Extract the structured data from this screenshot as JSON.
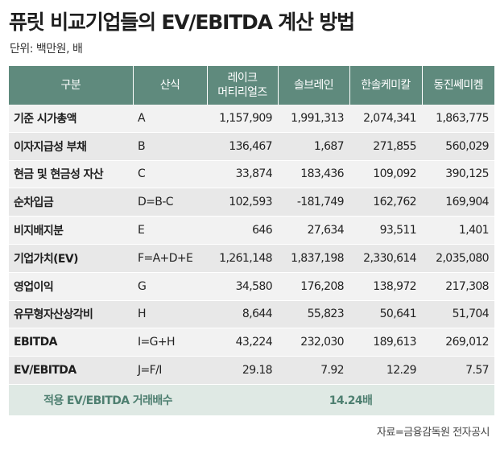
{
  "title": "퓨릿 비교기업들의 EV/EBITDA 계산 방법",
  "unit": "단위: 백만원, 배",
  "headers": [
    "구분",
    "산식",
    "레이크\n머티리얼즈",
    "솔브레인",
    "한솔케미칼",
    "동진쎄미켐"
  ],
  "rows": [
    {
      "label": "기준 시가총액",
      "formula": "A",
      "values": [
        "1,157,909",
        "1,991,313",
        "2,074,341",
        "1,863,775"
      ]
    },
    {
      "label": "이자지급성 부채",
      "formula": "B",
      "values": [
        "136,467",
        "1,687",
        "271,855",
        "560,029"
      ]
    },
    {
      "label": "현금 및 현금성 자산",
      "formula": "C",
      "values": [
        "33,874",
        "183,436",
        "109,092",
        "390,125"
      ]
    },
    {
      "label": "순차입금",
      "formula": "D=B-C",
      "values": [
        "102,593",
        "-181,749",
        "162,762",
        "169,904"
      ]
    },
    {
      "label": "비지배지분",
      "formula": "E",
      "values": [
        "646",
        "27,634",
        "93,511",
        "1,401"
      ]
    },
    {
      "label": "기업가치(EV)",
      "formula": "F=A+D+E",
      "values": [
        "1,261,148",
        "1,837,198",
        "2,330,614",
        "2,035,080"
      ]
    },
    {
      "label": "영업이익",
      "formula": "G",
      "values": [
        "34,580",
        "176,208",
        "138,972",
        "217,308"
      ]
    },
    {
      "label": "유무형자산상각비",
      "formula": "H",
      "values": [
        "8,644",
        "55,823",
        "50,641",
        "51,704"
      ]
    },
    {
      "label": "EBITDA",
      "formula": "I=G+H",
      "values": [
        "43,224",
        "232,030",
        "189,613",
        "269,012"
      ]
    },
    {
      "label": "EV/EBITDA",
      "formula": "J=F/I",
      "values": [
        "29.18",
        "7.92",
        "12.29",
        "7.57"
      ]
    }
  ],
  "summary": {
    "label": "적용 EV/EBITDA 거래배수",
    "value": "14.24배"
  },
  "source": "자료=금융감독원 전자공시",
  "colors": {
    "header": "#5f8a7d",
    "summary_bg": "#dfe9e4",
    "summary_text": "#4e7f70"
  }
}
